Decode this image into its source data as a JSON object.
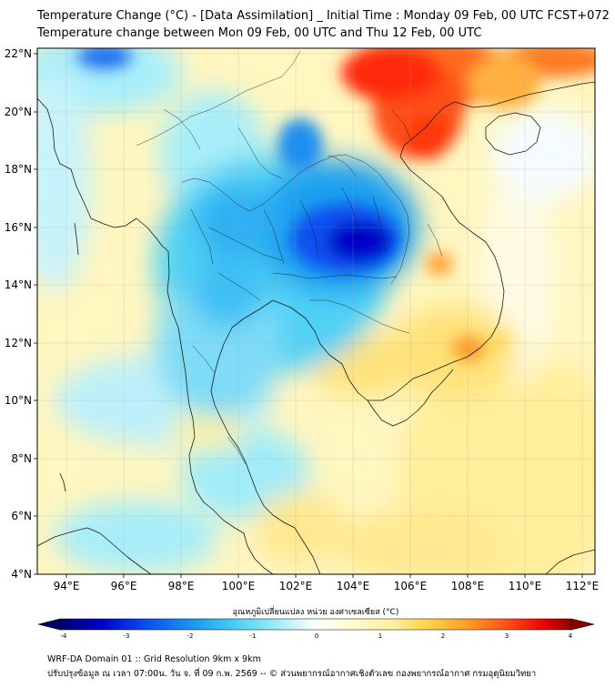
{
  "titles": {
    "line1": "Temperature Change (°C) - [Data Assimilation] _ Initial Time : Monday 09 Feb, 00 UTC FCST+072",
    "line2": "Temperature change between Mon 09 Feb, 00 UTC and Thu 12 Feb, 00 UTC"
  },
  "map": {
    "lon_range": [
      93,
      112.5
    ],
    "lat_range": [
      4,
      22.2
    ],
    "lat_labels": [
      "22°N",
      "20°N",
      "18°N",
      "16°N",
      "14°N",
      "12°N",
      "10°N",
      "8°N",
      "6°N",
      "4°N"
    ],
    "lon_labels": [
      "94°E",
      "96°E",
      "98°E",
      "100°E",
      "102°E",
      "104°E",
      "106°E",
      "108°E",
      "110°E",
      "112°E"
    ]
  },
  "colorbar": {
    "title": "อุณหภูมิเปลี่ยนแปลง หน่วย องศาเซลเซียส (°C)",
    "ticks": [
      "-4",
      "-3",
      "-2",
      "-1",
      "0",
      "1",
      "2",
      "3",
      "4"
    ],
    "range": [
      -4,
      4
    ],
    "colors": [
      "#00006e",
      "#0000c8",
      "#0a50f0",
      "#1ea0f0",
      "#50d2f5",
      "#a0ecf8",
      "#f2fbff",
      "#ffffff",
      "#fffcd0",
      "#fff0a0",
      "#ffd24a",
      "#ff9a28",
      "#ff4a14",
      "#e60000",
      "#8c0000"
    ]
  },
  "footer": {
    "line1": "WRF-DA Domain 01 :: Grid Resolution 9km x 9km",
    "line2": "ปรับปรุงข้อมูล ณ เวลา 07:00น. วัน จ. ที่ 09 ก.พ. 2569 -- © ส่วนพยากรณ์อากาศเชิงตัวเลข กองพยากรณ์อากาศ กรมอุตุนิยมวิทยา"
  }
}
